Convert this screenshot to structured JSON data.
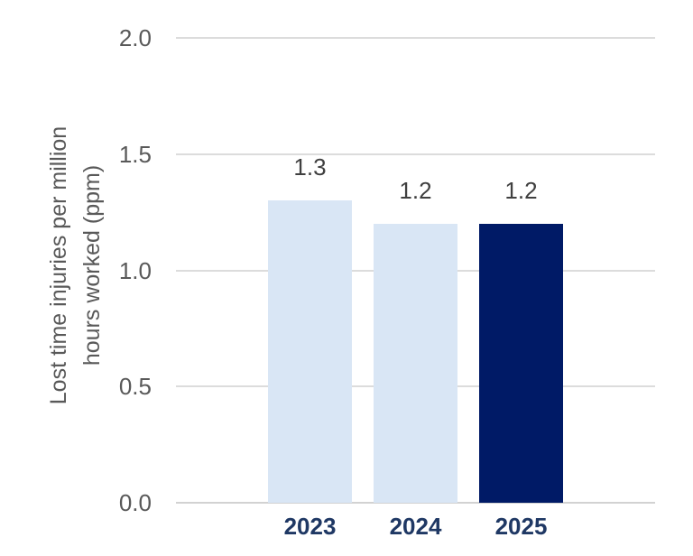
{
  "chart_data": {
    "type": "bar",
    "title": "",
    "categories": [
      "2023",
      "2024",
      "2025"
    ],
    "values": [
      1.3,
      1.2,
      1.2
    ],
    "value_labels": [
      "1.3",
      "1.2",
      "1.2"
    ],
    "ylabel": "Lost time injuries per million hours worked (ppm)",
    "ylabel_line1": "Lost time injuries per million",
    "ylabel_line2": "hours worked (ppm)",
    "xlabel": "",
    "ylim": [
      0.0,
      2.0
    ],
    "yticks": [
      0.0,
      0.5,
      1.0,
      1.5,
      2.0
    ],
    "ytick_labels": [
      "0.0",
      "0.5",
      "1.0",
      "1.5",
      "2.0"
    ],
    "grid": true,
    "legend": "none",
    "bar_colors": [
      "#D9E6F5",
      "#D9E6F5",
      "#001A66"
    ],
    "colors": {
      "background": "#FFFFFF",
      "gridline": "#DCDCDC",
      "axis_line": "#D2D2D2",
      "tick_label": "#595959",
      "axis_title": "#595959",
      "data_label": "#404040",
      "x_label": "#1F3864",
      "bar_light": "#D9E6F5",
      "bar_dark": "#001A66"
    }
  }
}
